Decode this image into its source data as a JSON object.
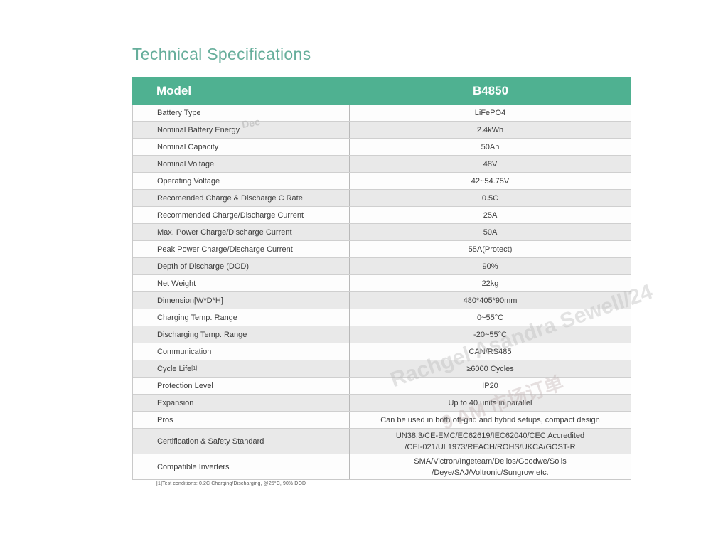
{
  "page": {
    "title": "Technical Specifications"
  },
  "table": {
    "header": {
      "col1": "Model",
      "col2": "B4850"
    },
    "rows": [
      {
        "label": "Battery Type",
        "value_lines": [
          "LiFePO4"
        ]
      },
      {
        "label": "Nominal Battery Energy",
        "value_lines": [
          "2.4kWh"
        ]
      },
      {
        "label": "Nominal Capacity",
        "value_lines": [
          "50Ah"
        ]
      },
      {
        "label": "Nominal Voltage",
        "value_lines": [
          "48V"
        ]
      },
      {
        "label": "Operating Voltage",
        "value_lines": [
          "42~54.75V"
        ]
      },
      {
        "label": "Recomended Charge & Discharge C Rate",
        "value_lines": [
          "0.5C"
        ]
      },
      {
        "label": "Recommended Charge/Discharge Current",
        "value_lines": [
          "25A"
        ]
      },
      {
        "label": "Max. Power Charge/Discharge Current",
        "value_lines": [
          "50A"
        ]
      },
      {
        "label": "Peak Power Charge/Discharge Current",
        "value_lines": [
          "55A(Protect)"
        ]
      },
      {
        "label": "Depth of Discharge (DOD)",
        "value_lines": [
          "90%"
        ]
      },
      {
        "label": "Net Weight",
        "value_lines": [
          "22kg"
        ]
      },
      {
        "label": "Dimension[W*D*H]",
        "value_lines": [
          "480*405*90mm"
        ]
      },
      {
        "label": "Charging Temp. Range",
        "value_lines": [
          "0~55°C"
        ]
      },
      {
        "label": "Discharging Temp. Range",
        "value_lines": [
          "-20~55°C"
        ]
      },
      {
        "label": "Communication",
        "value_lines": [
          "CAN/RS485"
        ]
      },
      {
        "label": "Cycle Life",
        "label_sup": "[1]",
        "value_lines": [
          "≥6000 Cycles"
        ]
      },
      {
        "label": "Protection Level",
        "value_lines": [
          "IP20"
        ]
      },
      {
        "label": "Expansion",
        "value_lines": [
          "Up to 40 units in parallel"
        ]
      },
      {
        "label": "Pros",
        "value_lines": [
          "Can be used in both off-grid and hybrid setups, compact design"
        ]
      },
      {
        "label": "Certification & Safety Standard",
        "value_lines": [
          "UN38.3/CE-EMC/EC62619/IEC62040/CEC Accredited",
          "/CEI-021/UL1973/REACH/ROHS/UKCA/GOST-R"
        ]
      },
      {
        "label": "Compatible Inverters",
        "value_lines": [
          "SMA/Victron/Ingeteam/Delios/Goodwe/Solis",
          "/Deye/SAJ/Voltronic/Sungrow etc."
        ]
      }
    ],
    "footnote": "[1]Test conditions: 0.2C Charging/Discharging, @25°C, 90% DOD"
  },
  "watermarks": [
    {
      "text": "Dec"
    },
    {
      "text": "Rachgel Asandra Sewell/24"
    },
    {
      "text": "9 AM 市场订单"
    }
  ],
  "colors": {
    "header_bg": "#4FB191",
    "header_text": "#FFFFFF",
    "title_text": "#66AE9B",
    "row_bg": "#FDFDFD",
    "row_alt_bg": "#E9E9E9",
    "body_text": "#3D3D3D",
    "border": "#C9C9C9"
  }
}
